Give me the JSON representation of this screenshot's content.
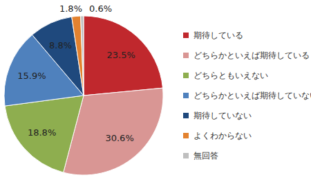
{
  "chart_data": {
    "type": "pie",
    "categories": [
      "期待している",
      "どちらかといえば期待している",
      "どちらともいえない",
      "どちらかといえば期待していない",
      "期待していない",
      "よくわからない",
      "無回答"
    ],
    "values": [
      23.5,
      30.6,
      18.8,
      15.9,
      8.8,
      1.8,
      0.6
    ],
    "value_labels": [
      "23.5%",
      "30.6%",
      "18.8%",
      "15.9%",
      "8.8%",
      "1.8%",
      "0.6%"
    ],
    "colors": [
      "#c0282d",
      "#d99694",
      "#8eae4f",
      "#4f81bd",
      "#1f497d",
      "#e3822f",
      "#bfbfbf"
    ],
    "data_labels": true,
    "legend": "right"
  }
}
